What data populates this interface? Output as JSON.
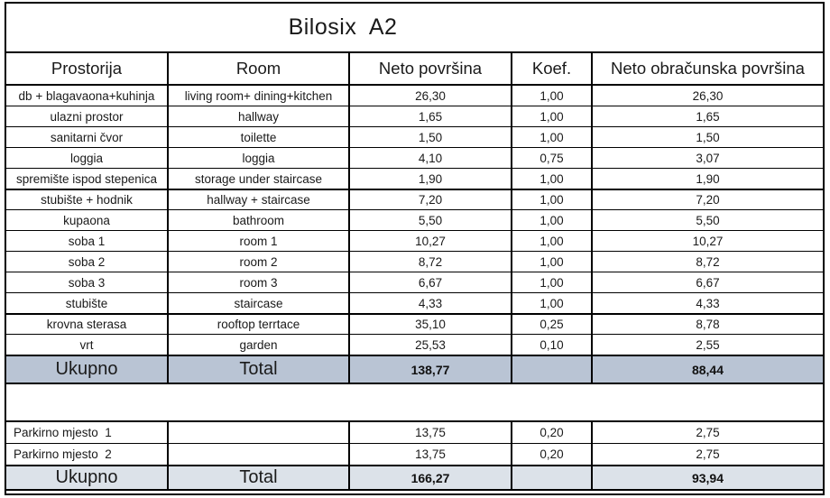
{
  "table": {
    "title": "Bilosix  A2",
    "columns": {
      "prostorija": "Prostorija",
      "room": "Room",
      "neto": "Neto površina",
      "koef": "Koef.",
      "obracunska": "Neto obračunska površina"
    },
    "rows": [
      {
        "prostorija": "db + blagavaona+kuhinja",
        "room": "living room+ dining+kitchen",
        "neto": "26,30",
        "koef": "1,00",
        "obracunska": "26,30",
        "thick_top": false
      },
      {
        "prostorija": "ulazni prostor",
        "room": "hallway",
        "neto": "1,65",
        "koef": "1,00",
        "obracunska": "1,65",
        "thick_top": false
      },
      {
        "prostorija": "sanitarni čvor",
        "room": "toilette",
        "neto": "1,50",
        "koef": "1,00",
        "obracunska": "1,50",
        "thick_top": false
      },
      {
        "prostorija": "loggia",
        "room": "loggia",
        "neto": "4,10",
        "koef": "0,75",
        "obracunska": "3,07",
        "thick_top": false
      },
      {
        "prostorija": "spremište ispod stepenica",
        "room": "storage under staircase",
        "neto": "1,90",
        "koef": "1,00",
        "obracunska": "1,90",
        "thick_top": false
      },
      {
        "prostorija": "stubište + hodnik",
        "room": "hallway + staircase",
        "neto": "7,20",
        "koef": "1,00",
        "obracunska": "7,20",
        "thick_top": true
      },
      {
        "prostorija": "kupaona",
        "room": "bathroom",
        "neto": "5,50",
        "koef": "1,00",
        "obracunska": "5,50",
        "thick_top": false
      },
      {
        "prostorija": "soba 1",
        "room": "room 1",
        "neto": "10,27",
        "koef": "1,00",
        "obracunska": "10,27",
        "thick_top": false
      },
      {
        "prostorija": "soba 2",
        "room": "room 2",
        "neto": "8,72",
        "koef": "1,00",
        "obracunska": "8,72",
        "thick_top": false
      },
      {
        "prostorija": "soba 3",
        "room": "room 3",
        "neto": "6,67",
        "koef": "1,00",
        "obracunska": "6,67",
        "thick_top": false
      },
      {
        "prostorija": "stubište",
        "room": "staircase",
        "neto": "4,33",
        "koef": "1,00",
        "obracunska": "4,33",
        "thick_top": false
      },
      {
        "prostorija": "krovna sterasa",
        "room": "rooftop terrtace",
        "neto": "35,10",
        "koef": "0,25",
        "obracunska": "8,78",
        "thick_top": true
      },
      {
        "prostorija": "vrt",
        "room": "garden",
        "neto": "25,53",
        "koef": "0,10",
        "obracunska": "2,55",
        "thick_top": false
      }
    ],
    "total": {
      "label_hr": "Ukupno",
      "label_en": "Total",
      "neto": "138,77",
      "koef": "",
      "obracunska": "88,44"
    },
    "parking_rows": [
      {
        "prostorija": "Parkirno mjesto  1",
        "room": "",
        "neto": "13,75",
        "koef": "0,20",
        "obracunska": "2,75"
      },
      {
        "prostorija": "Parkirno mjesto  2",
        "room": "",
        "neto": "13,75",
        "koef": "0,20",
        "obracunska": "2,75"
      }
    ],
    "parking_total": {
      "label_hr": "Ukupno",
      "label_en": "Total",
      "neto": "166,27",
      "koef": "",
      "obracunska": "93,94"
    },
    "colors": {
      "total_row_bg": "#b9c4d4",
      "parking_total_bg": "#dce2e9",
      "border": "#000000",
      "text": "#1a1a1a"
    }
  }
}
